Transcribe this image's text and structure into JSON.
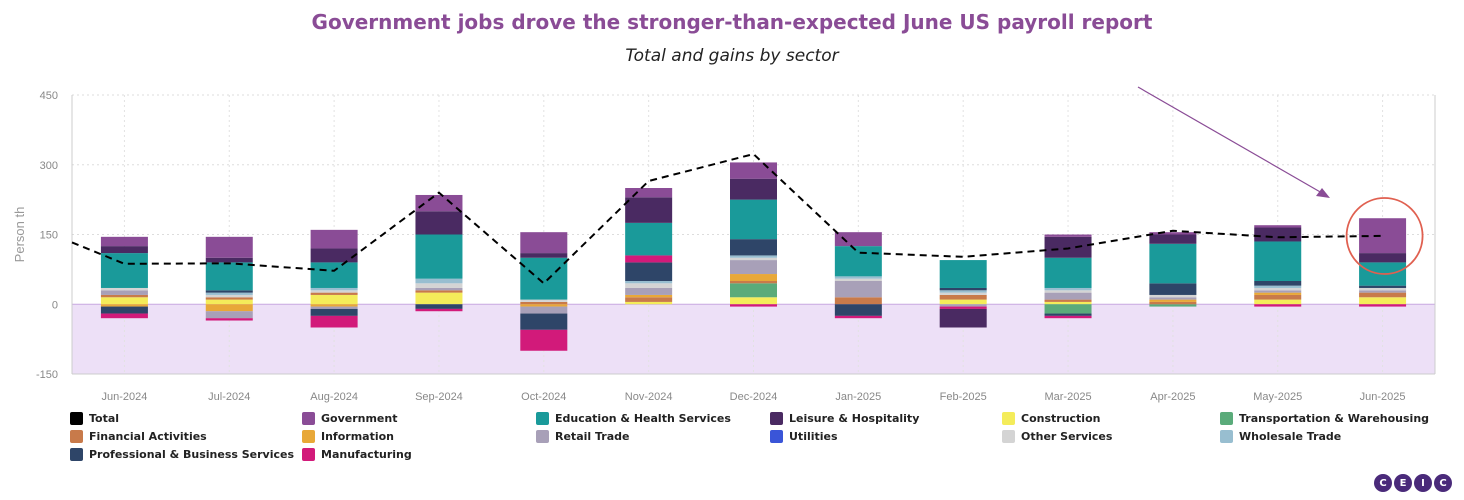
{
  "title": "Government jobs drove the stronger-than-expected June US payroll report",
  "subtitle": "Total and gains by sector",
  "logo": [
    "C",
    "E",
    "I",
    "C"
  ],
  "chart_data": {
    "type": "bar",
    "stacked": true,
    "title": "Government jobs drove the stronger-than-expected June US payroll report",
    "subtitle": "Total and gains by sector",
    "ylabel": "Person th",
    "ylim": [
      -150,
      450
    ],
    "yticks": [
      450,
      300,
      150,
      0,
      -150
    ],
    "grid": true,
    "legend_position": "bottom",
    "categories": [
      "Jun-2024",
      "Jul-2024",
      "Aug-2024",
      "Sep-2024",
      "Oct-2024",
      "Nov-2024",
      "Dec-2024",
      "Jan-2025",
      "Feb-2025",
      "Mar-2025",
      "Apr-2025",
      "May-2025",
      "Jun-2025"
    ],
    "series": [
      {
        "name": "Construction",
        "color": "#f4ec5a",
        "values": [
          15,
          10,
          20,
          25,
          0,
          5,
          15,
          0,
          10,
          5,
          0,
          10,
          15
        ]
      },
      {
        "name": "Transportation & Warehousing",
        "color": "#5aab7a",
        "values": [
          0,
          0,
          0,
          0,
          0,
          0,
          30,
          0,
          0,
          -20,
          -5,
          0,
          0
        ]
      },
      {
        "name": "Financial Activities",
        "color": "#c87a4a",
        "values": [
          5,
          5,
          5,
          5,
          5,
          10,
          5,
          15,
          10,
          5,
          5,
          10,
          10
        ]
      },
      {
        "name": "Information",
        "color": "#e8a838",
        "values": [
          -5,
          -15,
          -5,
          0,
          -5,
          5,
          15,
          0,
          0,
          0,
          5,
          5,
          0
        ]
      },
      {
        "name": "Retail Trade",
        "color": "#a8a0b8",
        "values": [
          10,
          -15,
          -5,
          5,
          -15,
          15,
          30,
          35,
          -5,
          15,
          5,
          5,
          5
        ]
      },
      {
        "name": "Utilities",
        "color": "#3a55d8",
        "values": [
          0,
          0,
          0,
          0,
          0,
          0,
          0,
          0,
          0,
          0,
          0,
          0,
          0
        ]
      },
      {
        "name": "Other Services",
        "color": "#d4d4d4",
        "values": [
          5,
          5,
          5,
          10,
          5,
          10,
          5,
          5,
          5,
          5,
          5,
          5,
          5
        ]
      },
      {
        "name": "Wholesale Trade",
        "color": "#98bed0",
        "values": [
          0,
          5,
          5,
          10,
          0,
          5,
          5,
          5,
          5,
          5,
          0,
          5,
          0
        ]
      },
      {
        "name": "Professional & Business Services",
        "color": "#2e4568",
        "values": [
          -15,
          5,
          -15,
          -10,
          -35,
          40,
          35,
          -25,
          5,
          -5,
          25,
          10,
          5
        ]
      },
      {
        "name": "Manufacturing",
        "color": "#d21a7a",
        "values": [
          -10,
          -5,
          -25,
          -5,
          -45,
          15,
          -5,
          -5,
          -5,
          -5,
          0,
          -5,
          -5
        ]
      },
      {
        "name": "Education & Health Services",
        "color": "#1a9a9a",
        "values": [
          75,
          60,
          55,
          95,
          90,
          70,
          85,
          65,
          60,
          65,
          85,
          85,
          50
        ]
      },
      {
        "name": "Leisure & Hospitality",
        "color": "#4a2a62",
        "values": [
          15,
          10,
          30,
          50,
          10,
          55,
          45,
          0,
          -40,
          45,
          20,
          30,
          20
        ]
      },
      {
        "name": "Government",
        "color": "#8a4c96",
        "values": [
          20,
          45,
          40,
          35,
          45,
          20,
          35,
          30,
          0,
          5,
          5,
          5,
          75
        ]
      }
    ],
    "total": {
      "name": "Total",
      "color": "#000000",
      "values": [
        87,
        88,
        72,
        240,
        45,
        265,
        323,
        111,
        102,
        120,
        158,
        144,
        147
      ]
    }
  },
  "legend": [
    {
      "label": "Total",
      "color": "#000000"
    },
    {
      "label": "Government",
      "color": "#8a4c96"
    },
    {
      "label": "Education & Health Services",
      "color": "#1a9a9a"
    },
    {
      "label": "Leisure & Hospitality",
      "color": "#4a2a62"
    },
    {
      "label": "Construction",
      "color": "#f4ec5a"
    },
    {
      "label": "Transportation & Warehousing",
      "color": "#5aab7a"
    },
    {
      "label": "Financial Activities",
      "color": "#c87a4a"
    },
    {
      "label": "Information",
      "color": "#e8a838"
    },
    {
      "label": "Retail Trade",
      "color": "#a8a0b8"
    },
    {
      "label": "Utilities",
      "color": "#3a55d8"
    },
    {
      "label": "Other Services",
      "color": "#d4d4d4"
    },
    {
      "label": "Wholesale Trade",
      "color": "#98bed0"
    },
    {
      "label": "Professional & Business Services",
      "color": "#2e4568"
    },
    {
      "label": "Manufacturing",
      "color": "#d21a7a"
    }
  ]
}
